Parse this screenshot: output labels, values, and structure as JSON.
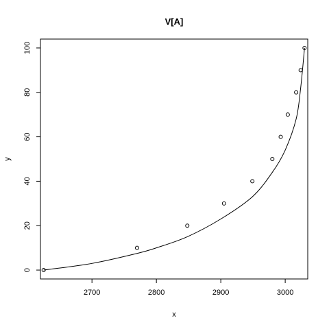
{
  "chart_data": {
    "type": "scatter",
    "title": "V[A]",
    "xlabel": "x",
    "ylabel": "y",
    "xlim": [
      2620,
      3035
    ],
    "ylim": [
      -4,
      104
    ],
    "x_ticks": [
      2700,
      2800,
      2900,
      3000
    ],
    "y_ticks": [
      0,
      20,
      40,
      60,
      80,
      100
    ],
    "grid": false,
    "legend": "none",
    "points": [
      {
        "x": 2625,
        "y": 0
      },
      {
        "x": 2770,
        "y": 10
      },
      {
        "x": 2848,
        "y": 20
      },
      {
        "x": 2905,
        "y": 30
      },
      {
        "x": 2949,
        "y": 40
      },
      {
        "x": 2980,
        "y": 50
      },
      {
        "x": 2993,
        "y": 60
      },
      {
        "x": 3004,
        "y": 70
      },
      {
        "x": 3017,
        "y": 80
      },
      {
        "x": 3024,
        "y": 90
      },
      {
        "x": 3030,
        "y": 100
      }
    ],
    "fit_curve": [
      {
        "x": 2625,
        "y": 0
      },
      {
        "x": 2700,
        "y": 3
      },
      {
        "x": 2770,
        "y": 7.5
      },
      {
        "x": 2800,
        "y": 10
      },
      {
        "x": 2848,
        "y": 15
      },
      {
        "x": 2900,
        "y": 23
      },
      {
        "x": 2949,
        "y": 33
      },
      {
        "x": 2980,
        "y": 44
      },
      {
        "x": 3000,
        "y": 54
      },
      {
        "x": 3017,
        "y": 68
      },
      {
        "x": 3024,
        "y": 82
      },
      {
        "x": 3030,
        "y": 100
      }
    ]
  }
}
